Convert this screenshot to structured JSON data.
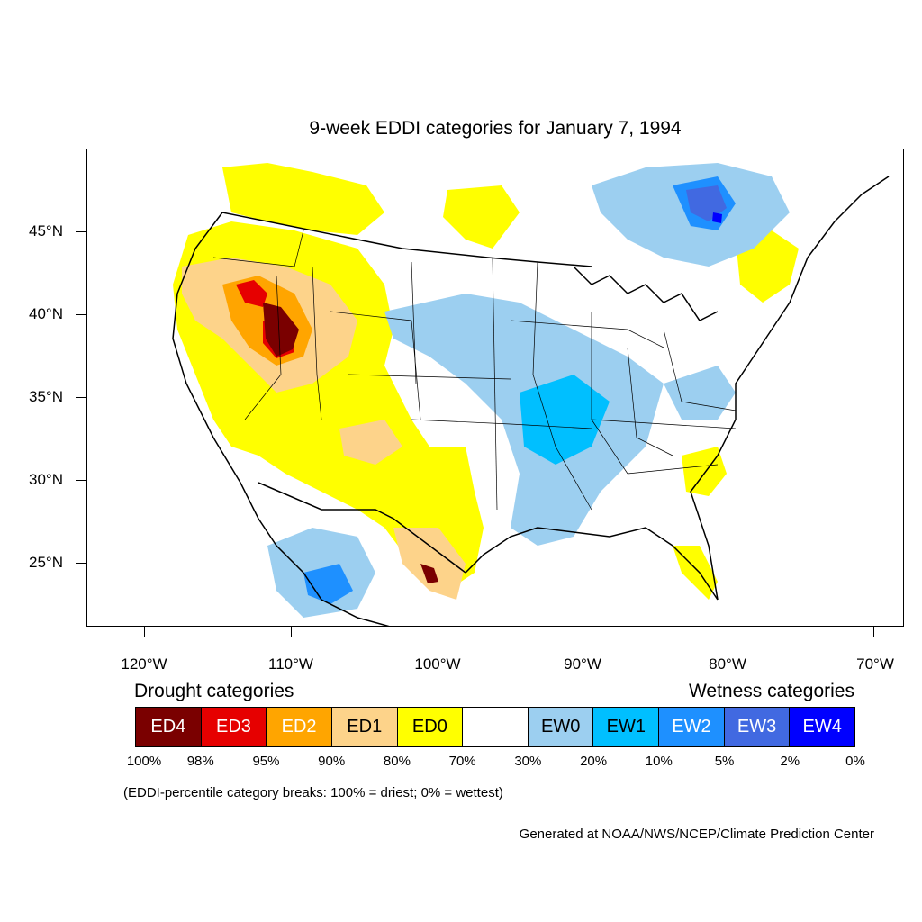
{
  "title": "9-week EDDI categories for January 7, 1994",
  "axes": {
    "lat_ticks": [
      "45°N",
      "40°N",
      "35°N",
      "30°N",
      "25°N"
    ],
    "lon_ticks": [
      "120°W",
      "110°W",
      "100°W",
      "90°W",
      "80°W",
      "70°W"
    ]
  },
  "legend": {
    "drought_heading": "Drought categories",
    "wetness_heading": "Wetness categories",
    "categories": [
      {
        "label": "ED4",
        "color": "#7a0000",
        "text_color": "#ffffff"
      },
      {
        "label": "ED3",
        "color": "#e60000",
        "text_color": "#ffffff"
      },
      {
        "label": "ED2",
        "color": "#ffa500",
        "text_color": "#ffffff"
      },
      {
        "label": "ED1",
        "color": "#fdd38a",
        "text_color": "#000000"
      },
      {
        "label": "ED0",
        "color": "#ffff00",
        "text_color": "#000000"
      },
      {
        "label": "",
        "color": "#ffffff",
        "text_color": "#000000"
      },
      {
        "label": "EW0",
        "color": "#9ccff0",
        "text_color": "#000000"
      },
      {
        "label": "EW1",
        "color": "#00bfff",
        "text_color": "#000000"
      },
      {
        "label": "EW2",
        "color": "#1e90ff",
        "text_color": "#ffffff"
      },
      {
        "label": "EW3",
        "color": "#4169e1",
        "text_color": "#ffffff"
      },
      {
        "label": "EW4",
        "color": "#0000ff",
        "text_color": "#ffffff"
      }
    ],
    "breaks": [
      "100%",
      "98%",
      "95%",
      "90%",
      "80%",
      "70%",
      "30%",
      "20%",
      "10%",
      "5%",
      "2%",
      "0%"
    ]
  },
  "note": "(EDDI-percentile category breaks: 100% = driest; 0% = wettest)",
  "credit": "Generated at NOAA/NWS/NCEP/Climate Prediction Center"
}
